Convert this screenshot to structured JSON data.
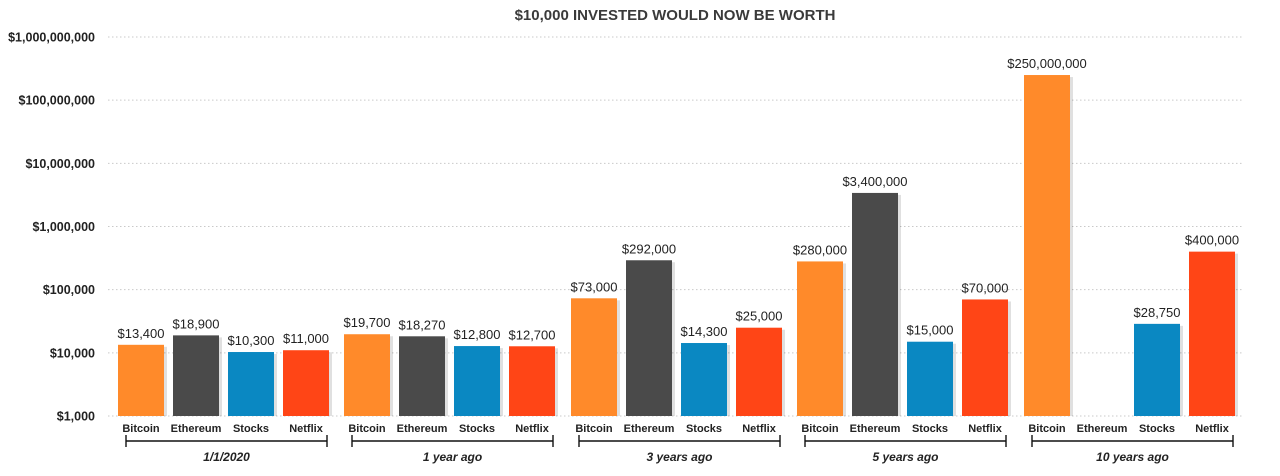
{
  "chart_data": {
    "type": "bar",
    "title": "$10,000 INVESTED WOULD NOW BE WORTH",
    "yscale": "log",
    "ylim": [
      1000,
      1000000000
    ],
    "yticks": [
      {
        "value": 1000000000,
        "label": "$1,000,000,000"
      },
      {
        "value": 100000000,
        "label": "$100,000,000"
      },
      {
        "value": 10000000,
        "label": "$10,000,000"
      },
      {
        "value": 1000000,
        "label": "$1,000,000"
      },
      {
        "value": 100000,
        "label": "$100,000"
      },
      {
        "value": 10000,
        "label": "$10,000"
      },
      {
        "value": 1000,
        "label": "$1,000"
      }
    ],
    "grid": true,
    "colors": {
      "Bitcoin": "#ff8a2a",
      "Ethereum": "#4a4a4a",
      "Stocks": "#0a88c2",
      "Netflix": "#ff4516"
    },
    "groups": [
      {
        "label": "1/1/2020",
        "bars": [
          {
            "category": "Bitcoin",
            "value": 13400,
            "label": "$13,400"
          },
          {
            "category": "Ethereum",
            "value": 18900,
            "label": "$18,900"
          },
          {
            "category": "Stocks",
            "value": 10300,
            "label": "$10,300"
          },
          {
            "category": "Netflix",
            "value": 11000,
            "label": "$11,000"
          }
        ]
      },
      {
        "label": "1 year ago",
        "bars": [
          {
            "category": "Bitcoin",
            "value": 19700,
            "label": "$19,700"
          },
          {
            "category": "Ethereum",
            "value": 18270,
            "label": "$18,270"
          },
          {
            "category": "Stocks",
            "value": 12800,
            "label": "$12,800"
          },
          {
            "category": "Netflix",
            "value": 12700,
            "label": "$12,700"
          }
        ]
      },
      {
        "label": "3 years ago",
        "bars": [
          {
            "category": "Bitcoin",
            "value": 73000,
            "label": "$73,000"
          },
          {
            "category": "Ethereum",
            "value": 292000,
            "label": "$292,000"
          },
          {
            "category": "Stocks",
            "value": 14300,
            "label": "$14,300"
          },
          {
            "category": "Netflix",
            "value": 25000,
            "label": "$25,000"
          }
        ]
      },
      {
        "label": "5 years ago",
        "bars": [
          {
            "category": "Bitcoin",
            "value": 280000,
            "label": "$280,000"
          },
          {
            "category": "Ethereum",
            "value": 3400000,
            "label": "$3,400,000"
          },
          {
            "category": "Stocks",
            "value": 15000,
            "label": "$15,000"
          },
          {
            "category": "Netflix",
            "value": 70000,
            "label": "$70,000"
          }
        ]
      },
      {
        "label": "10 years ago",
        "bars": [
          {
            "category": "Bitcoin",
            "value": 250000000,
            "label": "$250,000,000"
          },
          {
            "category": "Ethereum",
            "value": null,
            "label": ""
          },
          {
            "category": "Stocks",
            "value": 28750,
            "label": "$28,750"
          },
          {
            "category": "Netflix",
            "value": 400000,
            "label": "$400,000"
          }
        ]
      }
    ]
  }
}
